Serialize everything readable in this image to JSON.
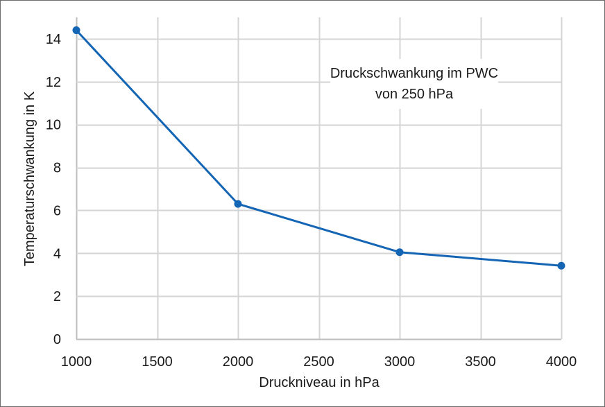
{
  "chart_data": {
    "type": "line",
    "title": "",
    "xlabel": "Druckniveau in hPa",
    "ylabel": "Temperaturschwankung in K",
    "xlim": [
      1000,
      4000
    ],
    "ylim": [
      0,
      15
    ],
    "x_ticks": [
      1000,
      1500,
      2000,
      2500,
      3000,
      3500,
      4000
    ],
    "y_ticks": [
      0,
      2,
      4,
      6,
      8,
      10,
      12,
      14
    ],
    "grid": true,
    "legend": null,
    "annotation": {
      "line1": "Druckschwankung im PWC",
      "line2": "von 250 hPa"
    },
    "series": [
      {
        "name": "Temperaturschwankung",
        "color": "#1565b5",
        "x": [
          1000,
          2000,
          3000,
          4000
        ],
        "y": [
          14.4,
          6.3,
          4.05,
          3.42
        ]
      }
    ]
  },
  "colors": {
    "grid": "#d4d4d4",
    "axis": "#bdbdbd",
    "line": "#1565b5",
    "frame": "#6b6b6b"
  }
}
